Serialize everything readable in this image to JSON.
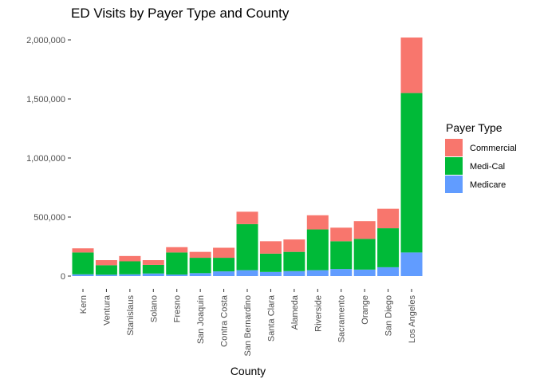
{
  "chart_data": {
    "type": "bar",
    "stacked": true,
    "title": "ED Visits by Payer Type and County",
    "xlabel": "County",
    "ylabel": "",
    "ylim": [
      0,
      2000000
    ],
    "yticks": [
      0,
      500000,
      1000000,
      1500000,
      2000000
    ],
    "ytick_labels": [
      "0",
      "500,000",
      "1,000,000",
      "1,500,000",
      "2,000,000"
    ],
    "grid": false,
    "legend": {
      "title": "Payer Type",
      "position": "right"
    },
    "categories": [
      "Kern",
      "Ventura",
      "Stanislaus",
      "Solano",
      "Fresno",
      "San Joaquin",
      "Contra Costa",
      "San Bernardino",
      "Santa Clara",
      "Alameda",
      "Riverside",
      "Sacramento",
      "Orange",
      "San Diego",
      "Los Angeles"
    ],
    "series": [
      {
        "name": "Medicare",
        "color": "#619CFF",
        "values": [
          15000,
          12000,
          15000,
          22000,
          13000,
          25000,
          40000,
          50000,
          35000,
          42000,
          50000,
          60000,
          55000,
          75000,
          200000
        ]
      },
      {
        "name": "Medi-Cal",
        "color": "#00BA38",
        "values": [
          185000,
          80000,
          110000,
          73000,
          187000,
          130000,
          115000,
          390000,
          155000,
          163000,
          345000,
          235000,
          260000,
          330000,
          1350000
        ]
      },
      {
        "name": "Commercial",
        "color": "#F8766D",
        "values": [
          35000,
          43000,
          45000,
          40000,
          45000,
          50000,
          85000,
          105000,
          105000,
          105000,
          120000,
          115000,
          150000,
          165000,
          470000
        ]
      }
    ],
    "legend_order": [
      "Commercial",
      "Medi-Cal",
      "Medicare"
    ]
  }
}
